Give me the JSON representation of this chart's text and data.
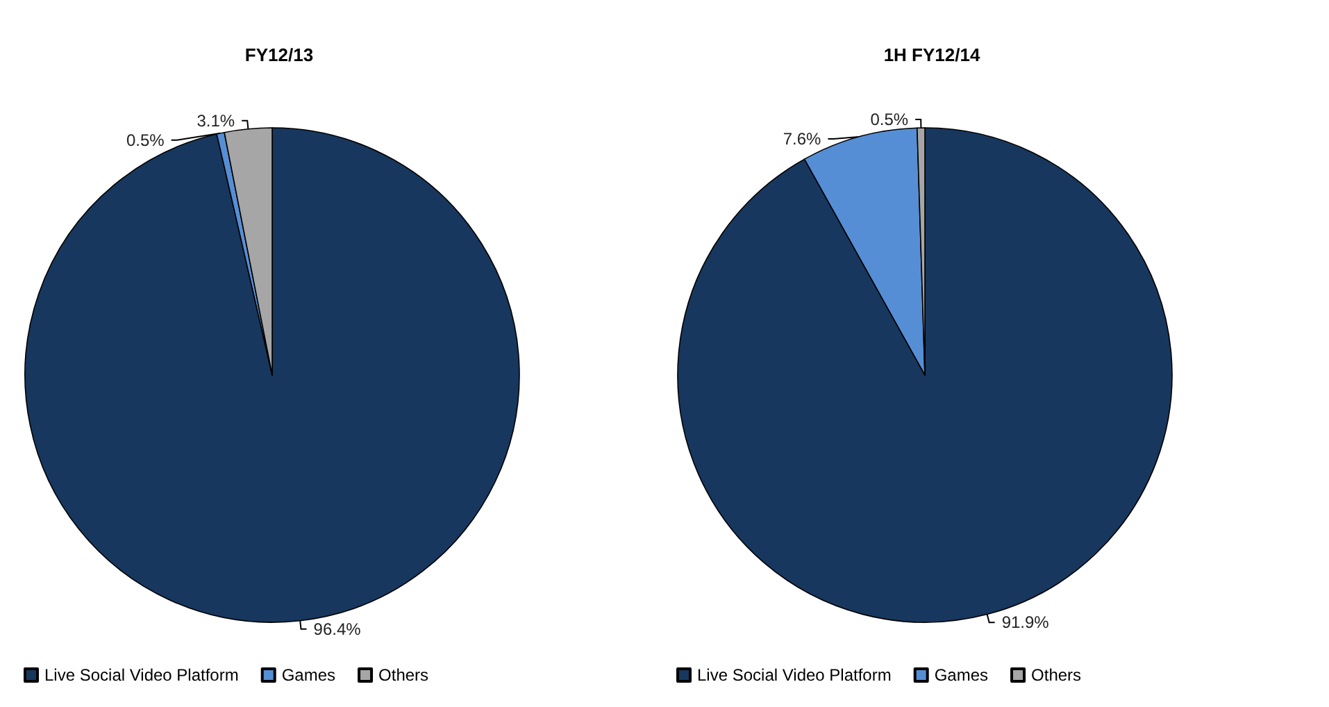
{
  "chart_data": [
    {
      "type": "pie",
      "title": "FY12/13",
      "categories": [
        "Live Social Video Platform",
        "Games",
        "Others"
      ],
      "values": [
        96.4,
        0.5,
        3.1
      ],
      "value_labels": [
        "96.4%",
        "0.5%",
        "3.1%"
      ],
      "colors": [
        "#17375e",
        "#558ed5",
        "#a6a6a6"
      ],
      "legend": "bottom left"
    },
    {
      "type": "pie",
      "title": "1H FY12/14",
      "categories": [
        "Live Social Video Platform",
        "Games",
        "Others"
      ],
      "values": [
        91.9,
        7.6,
        0.5
      ],
      "value_labels": [
        "91.9%",
        "7.6%",
        "0.5%"
      ],
      "colors": [
        "#17375e",
        "#558ed5",
        "#a6a6a6"
      ],
      "legend": "bottom left"
    }
  ]
}
